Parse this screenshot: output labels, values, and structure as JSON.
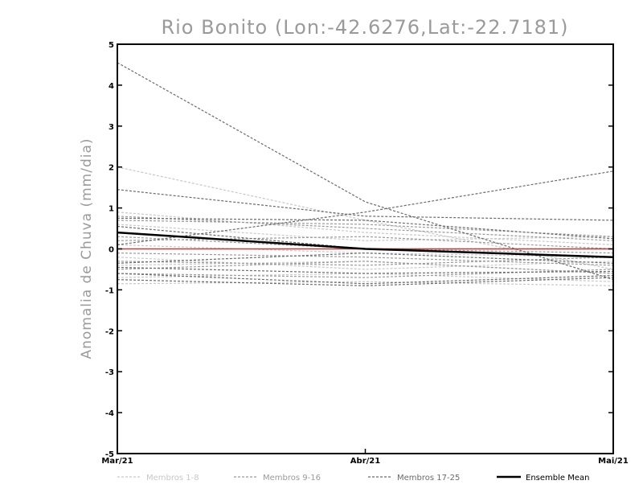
{
  "chart_data": {
    "type": "line",
    "title": "Rio Bonito (Lon:-42.6276,Lat:-22.7181)",
    "xlabel": "",
    "ylabel": "Anomalia de Chuva (mm/dia)",
    "categories": [
      "Mar/21",
      "Abr/21",
      "Mai/21"
    ],
    "ylim": [
      -5,
      5
    ],
    "yticks": [
      "5",
      "4",
      "3",
      "2",
      "1",
      "0",
      "-1",
      "-2",
      "-3",
      "-4",
      "-5"
    ],
    "zero_line_color": "#e03030",
    "legend_position": "bottom",
    "legend": [
      {
        "label": "Membros 1-8",
        "color": "#c8c8c8",
        "style": "dashed"
      },
      {
        "label": "Membros 9-16",
        "color": "#9a9a9a",
        "style": "dashed"
      },
      {
        "label": "Membros 17-25",
        "color": "#6a6a6a",
        "style": "dashed"
      },
      {
        "label": "Ensemble Mean",
        "color": "#000000",
        "style": "solid"
      }
    ],
    "series": [
      {
        "group": 1,
        "values": [
          2.0,
          0.7,
          -0.5
        ]
      },
      {
        "group": 1,
        "values": [
          0.9,
          0.4,
          0.1
        ]
      },
      {
        "group": 1,
        "values": [
          0.6,
          0.2,
          0.3
        ]
      },
      {
        "group": 1,
        "values": [
          0.1,
          -0.1,
          -0.2
        ]
      },
      {
        "group": 1,
        "values": [
          -0.2,
          -0.5,
          -0.3
        ]
      },
      {
        "group": 1,
        "values": [
          -0.4,
          -0.3,
          -0.6
        ]
      },
      {
        "group": 1,
        "values": [
          -0.7,
          -0.6,
          -0.8
        ]
      },
      {
        "group": 1,
        "values": [
          -0.85,
          -0.8,
          -0.9
        ]
      },
      {
        "group": 2,
        "values": [
          0.8,
          0.5,
          0.2
        ]
      },
      {
        "group": 2,
        "values": [
          0.7,
          0.6,
          0.3
        ]
      },
      {
        "group": 2,
        "values": [
          0.3,
          0.0,
          -0.1
        ]
      },
      {
        "group": 2,
        "values": [
          0.2,
          0.3,
          0.0
        ]
      },
      {
        "group": 2,
        "values": [
          -0.1,
          -0.2,
          -0.4
        ]
      },
      {
        "group": 2,
        "values": [
          -0.3,
          -0.4,
          -0.2
        ]
      },
      {
        "group": 2,
        "values": [
          -0.5,
          -0.3,
          -0.6
        ]
      },
      {
        "group": 2,
        "values": [
          -0.6,
          -0.7,
          -0.5
        ]
      },
      {
        "group": 3,
        "values": [
          4.55,
          1.15,
          -0.75
        ]
      },
      {
        "group": 3,
        "values": [
          1.45,
          0.8,
          0.7
        ]
      },
      {
        "group": 3,
        "values": [
          0.1,
          0.9,
          1.9
        ]
      },
      {
        "group": 3,
        "values": [
          0.75,
          0.7,
          0.25
        ]
      },
      {
        "group": 3,
        "values": [
          0.55,
          0.0,
          0.0
        ]
      },
      {
        "group": 3,
        "values": [
          -0.35,
          -0.1,
          -0.35
        ]
      },
      {
        "group": 3,
        "values": [
          -0.45,
          -0.6,
          -0.55
        ]
      },
      {
        "group": 3,
        "values": [
          -0.6,
          -0.85,
          -0.65
        ]
      },
      {
        "group": 3,
        "values": [
          -0.75,
          -0.9,
          -0.7
        ]
      }
    ],
    "ensemble_mean": {
      "values": [
        0.4,
        0.0,
        -0.2
      ]
    }
  }
}
